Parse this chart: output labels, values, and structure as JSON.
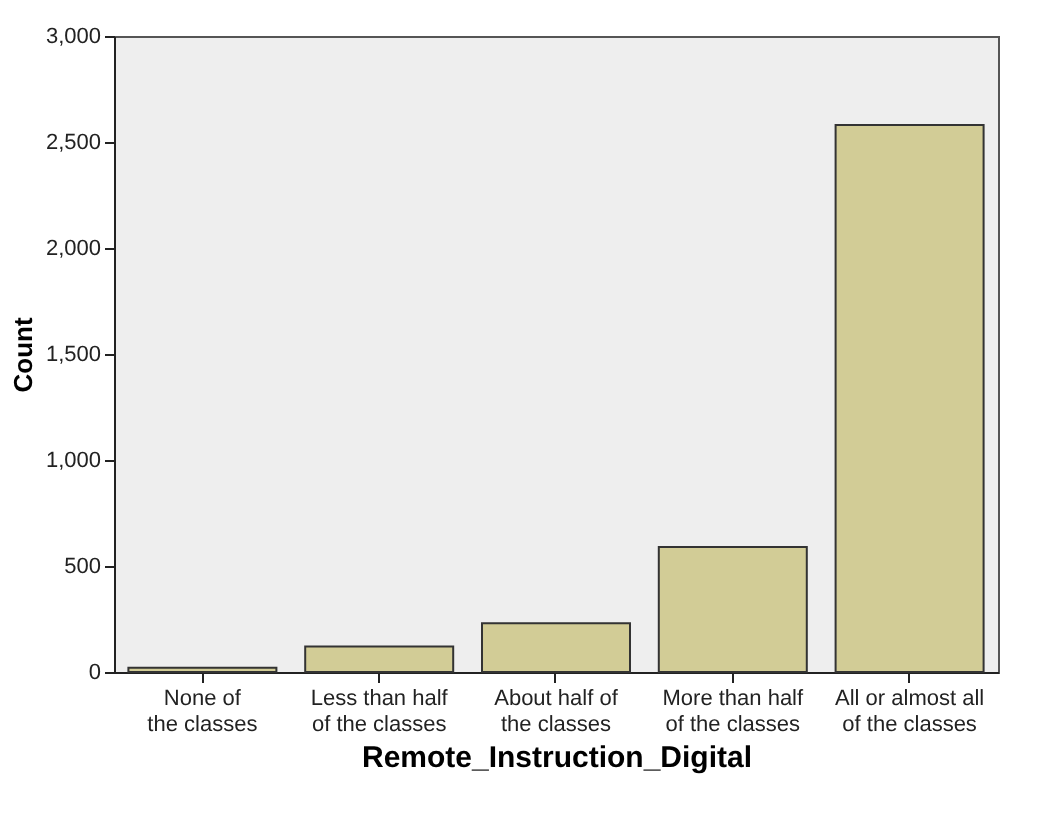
{
  "chart_data": {
    "type": "bar",
    "categories": [
      "None of the classes",
      "Less than half of the classes",
      "About half of the classes",
      "More than half of the classes",
      "All or almost all of the classes"
    ],
    "values": [
      20,
      120,
      230,
      590,
      2580
    ],
    "color": "#d2cc96",
    "xlabel": "Remote_Instruction_Digital",
    "ylabel": "Count",
    "ylim": [
      0,
      3000
    ],
    "yticks": [
      {
        "value": 0,
        "label": "0"
      },
      {
        "value": 500,
        "label": "500"
      },
      {
        "value": 1000,
        "label": "1,000"
      },
      {
        "value": 1500,
        "label": "1,500"
      },
      {
        "value": 2000,
        "label": "2,000"
      },
      {
        "value": 2500,
        "label": "2,500"
      },
      {
        "value": 3000,
        "label": "3,000"
      }
    ],
    "grid": false
  }
}
